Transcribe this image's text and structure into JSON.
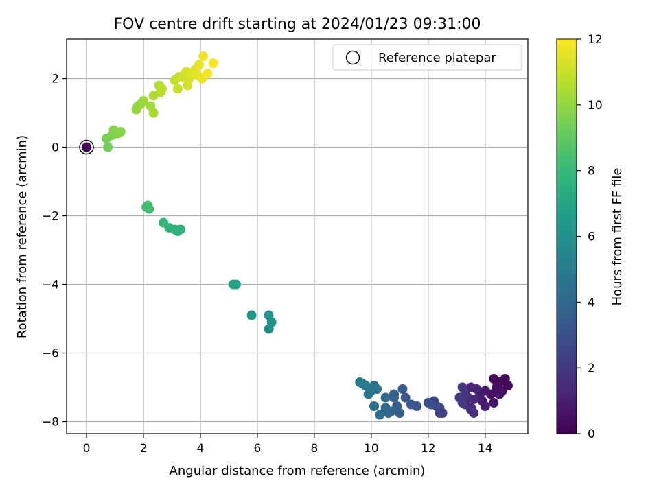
{
  "chart_data": {
    "type": "scatter",
    "title": "FOV centre drift starting at 2024/01/23 09:31:00",
    "xlabel": "Angular distance from reference (arcmin)",
    "ylabel": "Rotation from reference (arcmin)",
    "xlim": [
      -0.7,
      15.5
    ],
    "ylim": [
      -8.35,
      3.15
    ],
    "xticks": [
      0,
      2,
      4,
      6,
      8,
      10,
      12,
      14
    ],
    "yticks": [
      -8,
      -6,
      -4,
      -2,
      0,
      2
    ],
    "grid": true,
    "legend": {
      "position": "top-right",
      "entries": [
        "Reference platepar"
      ]
    },
    "reference_point": {
      "x": 0,
      "y": 0
    },
    "colorbar": {
      "label": "Hours from first FF file",
      "min": 0,
      "max": 12,
      "ticks": [
        0,
        2,
        4,
        6,
        8,
        10,
        12
      ],
      "colormap": "viridis"
    },
    "colormap_stops": [
      "#440154",
      "#482878",
      "#3e4989",
      "#31688e",
      "#26828e",
      "#1f9e89",
      "#35b779",
      "#6ece58",
      "#b5de2b",
      "#fde725"
    ],
    "points": [
      [
        0.0,
        0.0,
        0.0
      ],
      [
        14.3,
        -6.75,
        0.1
      ],
      [
        14.5,
        -6.85,
        0.2
      ],
      [
        14.7,
        -6.75,
        0.3
      ],
      [
        14.8,
        -6.95,
        0.3
      ],
      [
        14.6,
        -7.1,
        0.4
      ],
      [
        14.4,
        -7.0,
        0.5
      ],
      [
        14.2,
        -7.2,
        0.6
      ],
      [
        14.5,
        -7.2,
        0.6
      ],
      [
        14.3,
        -7.45,
        0.7
      ],
      [
        14.0,
        -7.1,
        0.8
      ],
      [
        13.8,
        -7.25,
        0.9
      ],
      [
        14.0,
        -7.55,
        1.0
      ],
      [
        13.9,
        -7.4,
        1.0
      ],
      [
        13.7,
        -7.05,
        1.1
      ],
      [
        13.5,
        -7.0,
        1.2
      ],
      [
        13.6,
        -7.35,
        1.3
      ],
      [
        13.4,
        -7.3,
        1.4
      ],
      [
        13.3,
        -7.5,
        1.5
      ],
      [
        13.5,
        -7.6,
        1.5
      ],
      [
        13.6,
        -7.75,
        1.6
      ],
      [
        13.5,
        -7.65,
        1.7
      ],
      [
        13.2,
        -7.0,
        1.8
      ],
      [
        13.3,
        -7.2,
        1.9
      ],
      [
        13.1,
        -7.3,
        2.0
      ],
      [
        13.2,
        -7.45,
        2.1
      ],
      [
        12.5,
        -7.75,
        2.3
      ],
      [
        12.4,
        -7.75,
        2.4
      ],
      [
        12.4,
        -7.6,
        2.5
      ],
      [
        12.3,
        -7.55,
        2.6
      ],
      [
        12.2,
        -7.4,
        2.7
      ],
      [
        12.1,
        -7.5,
        2.8
      ],
      [
        12.0,
        -7.45,
        2.9
      ],
      [
        11.6,
        -7.55,
        3.1
      ],
      [
        11.4,
        -7.5,
        3.2
      ],
      [
        11.2,
        -7.3,
        3.3
      ],
      [
        11.1,
        -7.05,
        3.4
      ],
      [
        11.0,
        -7.75,
        3.5
      ],
      [
        10.9,
        -7.55,
        3.6
      ],
      [
        10.8,
        -7.3,
        3.7
      ],
      [
        10.8,
        -7.2,
        3.8
      ],
      [
        10.7,
        -7.7,
        3.9
      ],
      [
        10.6,
        -7.75,
        4.0
      ],
      [
        10.5,
        -7.6,
        4.1
      ],
      [
        10.5,
        -7.3,
        4.2
      ],
      [
        10.3,
        -7.8,
        4.3
      ],
      [
        10.1,
        -7.55,
        4.4
      ],
      [
        10.2,
        -7.05,
        4.5
      ],
      [
        10.1,
        -6.95,
        4.6
      ],
      [
        10.0,
        -7.1,
        4.7
      ],
      [
        9.9,
        -7.2,
        4.8
      ],
      [
        9.8,
        -6.95,
        4.9
      ],
      [
        9.6,
        -6.85,
        5.0
      ],
      [
        9.7,
        -6.9,
        5.0
      ],
      [
        6.4,
        -5.3,
        6.0
      ],
      [
        6.5,
        -5.1,
        6.1
      ],
      [
        6.4,
        -4.9,
        6.2
      ],
      [
        5.8,
        -4.9,
        6.4
      ],
      [
        5.25,
        -4.0,
        6.8
      ],
      [
        5.15,
        -4.0,
        6.9
      ],
      [
        3.3,
        -2.4,
        7.6
      ],
      [
        3.2,
        -2.45,
        7.7
      ],
      [
        3.1,
        -2.4,
        7.7
      ],
      [
        2.9,
        -2.35,
        7.8
      ],
      [
        2.7,
        -2.2,
        7.9
      ],
      [
        2.2,
        -1.8,
        8.2
      ],
      [
        2.1,
        -1.75,
        8.3
      ],
      [
        2.15,
        -1.7,
        8.3
      ],
      [
        0.75,
        0.0,
        9.4
      ],
      [
        0.7,
        0.25,
        9.5
      ],
      [
        0.9,
        0.35,
        9.6
      ],
      [
        0.95,
        0.5,
        9.7
      ],
      [
        1.1,
        0.4,
        9.7
      ],
      [
        1.2,
        0.45,
        9.8
      ],
      [
        1.75,
        1.1,
        10.0
      ],
      [
        1.8,
        1.2,
        10.1
      ],
      [
        1.9,
        1.25,
        10.1
      ],
      [
        2.0,
        1.35,
        10.2
      ],
      [
        2.25,
        1.2,
        10.3
      ],
      [
        2.35,
        1.0,
        10.4
      ],
      [
        2.35,
        1.5,
        10.5
      ],
      [
        2.55,
        1.8,
        10.6
      ],
      [
        2.6,
        1.6,
        10.7
      ],
      [
        2.65,
        1.7,
        10.7
      ],
      [
        3.1,
        1.95,
        10.9
      ],
      [
        3.2,
        1.7,
        11.0
      ],
      [
        3.25,
        2.05,
        11.0
      ],
      [
        3.4,
        2.05,
        11.1
      ],
      [
        3.5,
        2.2,
        11.2
      ],
      [
        3.55,
        1.8,
        11.2
      ],
      [
        3.6,
        2.0,
        11.3
      ],
      [
        3.7,
        2.15,
        11.4
      ],
      [
        3.8,
        2.25,
        11.4
      ],
      [
        3.9,
        2.1,
        11.5
      ],
      [
        3.95,
        2.4,
        11.6
      ],
      [
        4.05,
        2.0,
        11.6
      ],
      [
        4.1,
        2.65,
        11.7
      ],
      [
        4.25,
        2.15,
        11.8
      ],
      [
        4.45,
        2.45,
        11.9
      ]
    ]
  }
}
